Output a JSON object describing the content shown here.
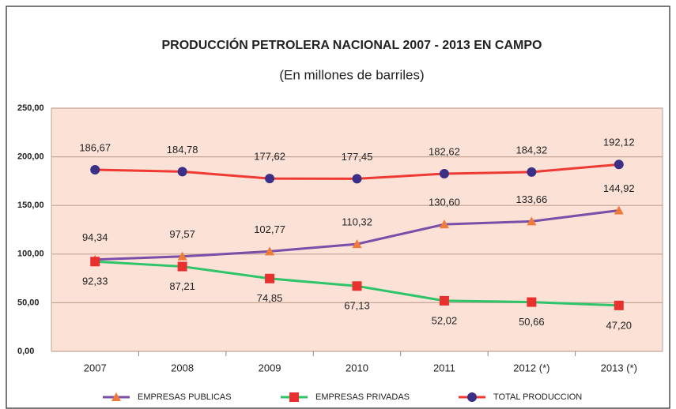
{
  "chart_data": {
    "type": "line",
    "title": "PRODUCCIÓN PETROLERA NACIONAL  2007 - 2013  EN CAMPO",
    "subtitle": "(En millones de barriles)",
    "categories": [
      "2007",
      "2008",
      "2009",
      "2010",
      "2011",
      "2012 (*)",
      "2013 (*)"
    ],
    "series": [
      {
        "name": "EMPRESAS  PUBLICAS",
        "color": "#7b4fa8",
        "marker": "triangle",
        "marker_color": "#f07a3a",
        "label_position": "above",
        "values": [
          94.34,
          97.57,
          102.77,
          110.32,
          130.6,
          133.66,
          144.92
        ],
        "value_labels": [
          "94,34",
          "97,57",
          "102,77",
          "110,32",
          "130,60",
          "133,66",
          "144,92"
        ]
      },
      {
        "name": "EMPRESAS PRIVADAS",
        "color": "#2ec46a",
        "marker": "square",
        "marker_color": "#e8312e",
        "label_position": "below",
        "values": [
          92.33,
          87.21,
          74.85,
          67.13,
          52.02,
          50.66,
          47.2
        ],
        "value_labels": [
          "92,33",
          "87,21",
          "74,85",
          "67,13",
          "52,02",
          "50,66",
          "47,20"
        ]
      },
      {
        "name": "TOTAL PRODUCCION",
        "color": "#ee3a33",
        "marker": "circle",
        "marker_color": "#3c2f86",
        "label_position": "above",
        "values": [
          186.67,
          184.78,
          177.62,
          177.45,
          182.62,
          184.32,
          192.12
        ],
        "value_labels": [
          "186,67",
          "184,78",
          "177,62",
          "177,45",
          "182,62",
          "184,32",
          "192,12"
        ]
      }
    ],
    "ylim": [
      0,
      250
    ],
    "yticks": [
      {
        "value": 0,
        "label": "0,00"
      },
      {
        "value": 50,
        "label": "50,00"
      },
      {
        "value": 100,
        "label": "100,00"
      },
      {
        "value": 150,
        "label": "150,00"
      },
      {
        "value": 200,
        "label": "200,00"
      },
      {
        "value": 250,
        "label": "250,00"
      }
    ],
    "grid": true,
    "legend": "bottom",
    "plot_background": "#fbe1d6"
  }
}
